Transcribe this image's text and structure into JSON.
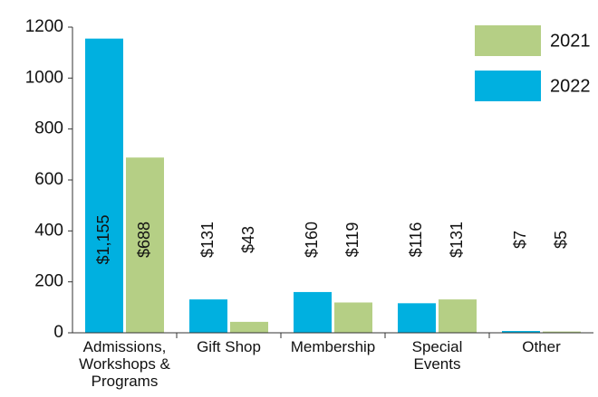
{
  "chart_data": {
    "type": "bar",
    "categories": [
      "Admissions, Workshops & Programs",
      "Gift Shop",
      "Membership",
      "Special Events",
      "Other"
    ],
    "series": [
      {
        "name": "2022",
        "color": "#00b0e0",
        "values": [
          1155,
          131,
          160,
          116,
          7
        ],
        "value_labels": [
          "$1,155",
          "$131",
          "$160",
          "$116",
          "$7"
        ]
      },
      {
        "name": "2021",
        "color": "#b5cf85",
        "values": [
          688,
          43,
          119,
          131,
          5
        ],
        "value_labels": [
          "$688",
          "$43",
          "$119",
          "$131",
          "$5"
        ]
      }
    ],
    "ylim": [
      0,
      1200
    ],
    "yticks": [
      0,
      200,
      400,
      600,
      800,
      1000,
      1200
    ],
    "legend": "top-right"
  }
}
